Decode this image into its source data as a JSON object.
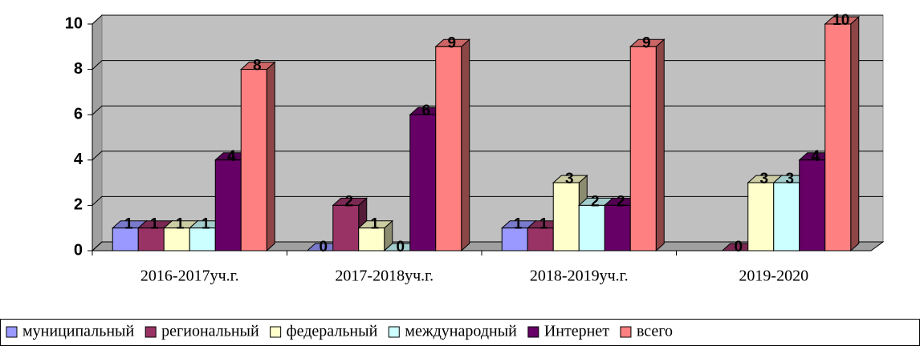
{
  "chart_data": {
    "type": "bar3d",
    "categories": [
      "2016-2017уч.г.",
      "2017-2018уч.г.",
      "2018-2019уч.г.",
      "2019-2020"
    ],
    "series": [
      {
        "name": "муниципальный",
        "color": "#9999ff",
        "values": [
          1,
          0,
          1,
          null
        ]
      },
      {
        "name": "региональный",
        "color": "#993366",
        "values": [
          1,
          2,
          1,
          0
        ]
      },
      {
        "name": "федеральный",
        "color": "#ffffcc",
        "values": [
          1,
          1,
          3,
          3
        ]
      },
      {
        "name": "международный",
        "color": "#ccffff",
        "values": [
          1,
          0,
          2,
          3
        ]
      },
      {
        "name": "Интернет",
        "color": "#660066",
        "values": [
          4,
          6,
          2,
          4
        ]
      },
      {
        "name": "всего",
        "color": "#ff8080",
        "values": [
          8,
          9,
          9,
          10
        ]
      }
    ],
    "ylim": [
      0,
      10
    ],
    "yticks": [
      0,
      2,
      4,
      6,
      8,
      10
    ],
    "grid": true,
    "legend": "bottom"
  }
}
